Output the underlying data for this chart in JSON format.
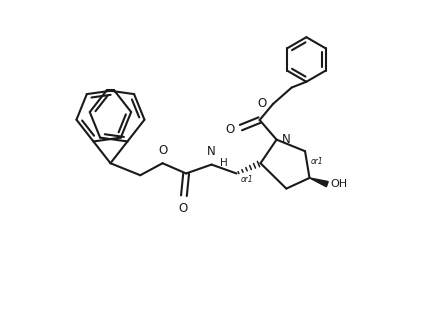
{
  "background": "#ffffff",
  "line_color": "#1a1a1a",
  "line_width": 1.5,
  "font_size": 8.5,
  "xlim": [
    0,
    10
  ],
  "ylim": [
    0,
    7.2
  ]
}
